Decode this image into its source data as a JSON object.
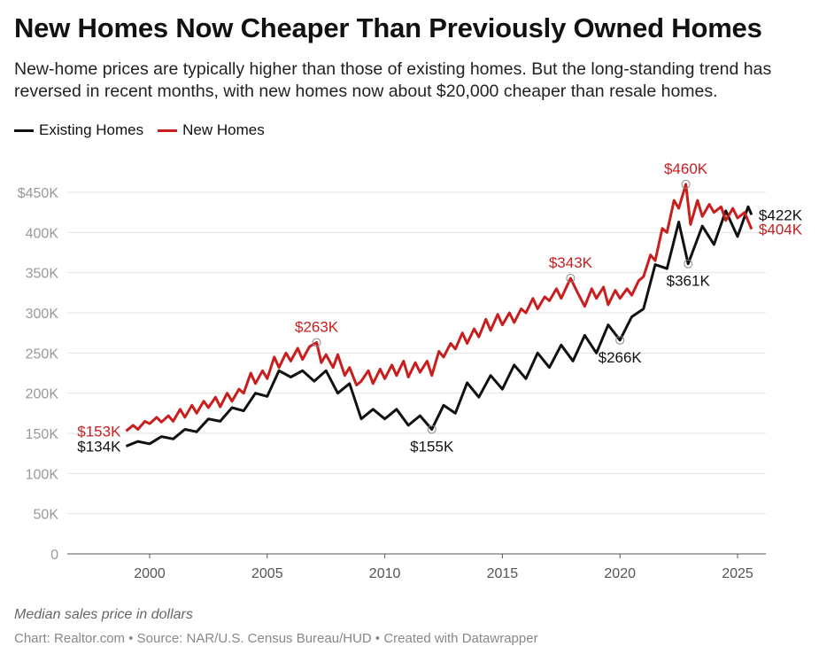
{
  "title": "New Homes Now Cheaper Than Previously Owned Homes",
  "subtitle": "New-home prices are typically higher than those of existing homes. But the long-standing trend has reversed in recent months, with new homes now about $20,000 cheaper than resale homes.",
  "note": "Median sales price in dollars",
  "source": "Chart: Realtor.com • Source: NAR/U.S. Census Bureau/HUD • Created with Datawrapper",
  "colors": {
    "existing": "#111111",
    "new": "#c81e1e",
    "grid": "#e3e3e3",
    "axis_text": "#999999"
  },
  "chart_data": {
    "type": "line",
    "xlim": [
      1997,
      2026
    ],
    "ylim": [
      0,
      450000
    ],
    "grid": true,
    "legend_placement": "top-left",
    "x_ticks": [
      {
        "value": 2000,
        "label": "2000"
      },
      {
        "value": 2005,
        "label": "2005"
      },
      {
        "value": 2010,
        "label": "2010"
      },
      {
        "value": 2015,
        "label": "2015"
      },
      {
        "value": 2020,
        "label": "2020"
      },
      {
        "value": 2025,
        "label": "2025"
      }
    ],
    "y_ticks": [
      {
        "value": 0,
        "label": "0"
      },
      {
        "value": 50000,
        "label": "50K"
      },
      {
        "value": 100000,
        "label": "100K"
      },
      {
        "value": 150000,
        "label": "150K"
      },
      {
        "value": 200000,
        "label": "200K"
      },
      {
        "value": 250000,
        "label": "250K"
      },
      {
        "value": 300000,
        "label": "300K"
      },
      {
        "value": 350000,
        "label": "350K"
      },
      {
        "value": 400000,
        "label": "400K"
      },
      {
        "value": 450000,
        "label": "$450K"
      }
    ],
    "series": [
      {
        "name": "Existing Homes",
        "key": "existing",
        "x": [
          1999.0,
          1999.5,
          2000.0,
          2000.5,
          2001.0,
          2001.5,
          2002.0,
          2002.5,
          2003.0,
          2003.5,
          2004.0,
          2004.5,
          2005.0,
          2005.5,
          2006.0,
          2006.5,
          2007.0,
          2007.5,
          2008.0,
          2008.5,
          2009.0,
          2009.5,
          2010.0,
          2010.5,
          2011.0,
          2011.5,
          2012.0,
          2012.5,
          2013.0,
          2013.5,
          2014.0,
          2014.5,
          2015.0,
          2015.5,
          2016.0,
          2016.5,
          2017.0,
          2017.5,
          2018.0,
          2018.5,
          2019.0,
          2019.5,
          2020.0,
          2020.5,
          2021.0,
          2021.5,
          2022.0,
          2022.5,
          2022.9,
          2023.5,
          2024.0,
          2024.5,
          2025.0,
          2025.45,
          2025.6
        ],
        "y": [
          134000,
          140000,
          137000,
          146000,
          143000,
          155000,
          152000,
          168000,
          165000,
          182000,
          178000,
          200000,
          196000,
          228000,
          220000,
          228000,
          215000,
          228000,
          200000,
          212000,
          168000,
          180000,
          168000,
          180000,
          160000,
          172000,
          155000,
          185000,
          175000,
          213000,
          195000,
          222000,
          205000,
          235000,
          218000,
          250000,
          232000,
          260000,
          240000,
          272000,
          250000,
          285000,
          266000,
          295000,
          305000,
          360000,
          355000,
          413000,
          361000,
          408000,
          385000,
          427000,
          395000,
          432000,
          422000
        ]
      },
      {
        "name": "New Homes",
        "key": "new",
        "x": [
          1999.0,
          1999.3,
          1999.5,
          1999.8,
          2000.0,
          2000.3,
          2000.5,
          2000.8,
          2001.0,
          2001.3,
          2001.5,
          2001.8,
          2002.0,
          2002.3,
          2002.5,
          2002.8,
          2003.0,
          2003.3,
          2003.5,
          2003.8,
          2004.0,
          2004.3,
          2004.5,
          2004.8,
          2005.0,
          2005.3,
          2005.5,
          2005.8,
          2006.0,
          2006.3,
          2006.5,
          2006.8,
          2007.1,
          2007.3,
          2007.5,
          2007.8,
          2008.0,
          2008.3,
          2008.5,
          2008.8,
          2009.0,
          2009.3,
          2009.5,
          2009.8,
          2010.0,
          2010.3,
          2010.5,
          2010.8,
          2011.0,
          2011.3,
          2011.5,
          2011.8,
          2012.0,
          2012.3,
          2012.5,
          2012.8,
          2013.0,
          2013.3,
          2013.5,
          2013.8,
          2014.0,
          2014.3,
          2014.5,
          2014.8,
          2015.0,
          2015.3,
          2015.5,
          2015.8,
          2016.0,
          2016.3,
          2016.5,
          2016.8,
          2017.0,
          2017.3,
          2017.5,
          2017.9,
          2018.2,
          2018.5,
          2018.8,
          2019.0,
          2019.3,
          2019.5,
          2019.8,
          2020.0,
          2020.3,
          2020.5,
          2020.8,
          2021.0,
          2021.3,
          2021.5,
          2021.8,
          2022.0,
          2022.3,
          2022.5,
          2022.8,
          2023.0,
          2023.3,
          2023.5,
          2023.8,
          2024.0,
          2024.3,
          2024.5,
          2024.8,
          2025.0,
          2025.3,
          2025.6
        ],
        "y": [
          153000,
          160000,
          155000,
          165000,
          162000,
          170000,
          164000,
          172000,
          165000,
          180000,
          170000,
          185000,
          175000,
          190000,
          182000,
          195000,
          183000,
          200000,
          190000,
          205000,
          200000,
          225000,
          212000,
          228000,
          218000,
          245000,
          232000,
          250000,
          240000,
          256000,
          242000,
          258000,
          263000,
          238000,
          248000,
          232000,
          248000,
          222000,
          232000,
          210000,
          215000,
          228000,
          212000,
          230000,
          218000,
          235000,
          222000,
          240000,
          220000,
          238000,
          226000,
          240000,
          222000,
          252000,
          245000,
          262000,
          255000,
          275000,
          262000,
          280000,
          270000,
          292000,
          278000,
          298000,
          285000,
          300000,
          288000,
          305000,
          300000,
          318000,
          305000,
          320000,
          315000,
          330000,
          318000,
          343000,
          325000,
          308000,
          330000,
          318000,
          332000,
          310000,
          328000,
          318000,
          330000,
          322000,
          340000,
          345000,
          372000,
          365000,
          405000,
          400000,
          440000,
          430000,
          460000,
          410000,
          440000,
          420000,
          435000,
          425000,
          432000,
          415000,
          430000,
          418000,
          425000,
          404000
        ]
      }
    ],
    "annotations": [
      {
        "series": "new",
        "x": 1999.0,
        "y": 153000,
        "label": "$153K",
        "circle": false,
        "pos": "left"
      },
      {
        "series": "existing",
        "x": 1999.0,
        "y": 134000,
        "label": "$134K",
        "circle": false,
        "pos": "left"
      },
      {
        "series": "new",
        "x": 2007.1,
        "y": 263000,
        "label": "$263K",
        "circle": true,
        "pos": "above"
      },
      {
        "series": "existing",
        "x": 2012.0,
        "y": 155000,
        "label": "$155K",
        "circle": true,
        "pos": "below"
      },
      {
        "series": "new",
        "x": 2017.9,
        "y": 343000,
        "label": "$343K",
        "circle": true,
        "pos": "above"
      },
      {
        "series": "existing",
        "x": 2020.0,
        "y": 266000,
        "label": "$266K",
        "circle": true,
        "pos": "below"
      },
      {
        "series": "new",
        "x": 2022.8,
        "y": 460000,
        "label": "$460K",
        "circle": true,
        "pos": "above"
      },
      {
        "series": "existing",
        "x": 2022.9,
        "y": 361000,
        "label": "$361K",
        "circle": true,
        "pos": "below"
      },
      {
        "series": "existing",
        "x": 2025.6,
        "y": 422000,
        "label": "$422K",
        "circle": false,
        "pos": "right"
      },
      {
        "series": "new",
        "x": 2025.6,
        "y": 404000,
        "label": "$404K",
        "circle": false,
        "pos": "right"
      }
    ]
  }
}
